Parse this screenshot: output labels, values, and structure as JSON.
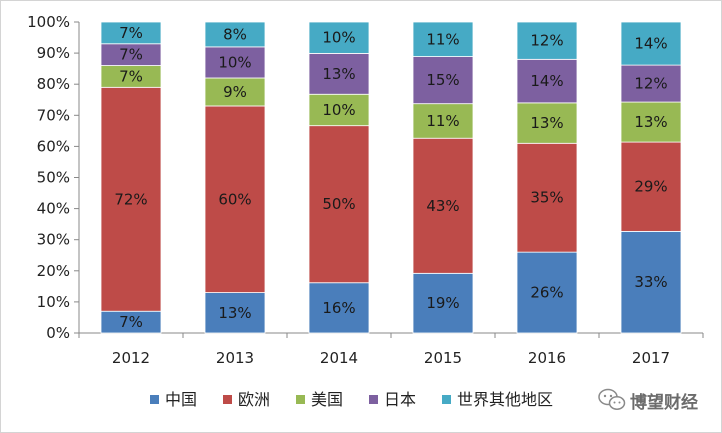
{
  "chart_data": {
    "type": "bar",
    "stacked": true,
    "normalized": true,
    "categories": [
      "2012",
      "2013",
      "2014",
      "2015",
      "2016",
      "2017"
    ],
    "yticks": [
      "0%",
      "10%",
      "20%",
      "30%",
      "40%",
      "50%",
      "60%",
      "70%",
      "80%",
      "90%",
      "100%"
    ],
    "ylim": [
      0,
      100
    ],
    "grid": false,
    "legend_position": "bottom",
    "series": [
      {
        "name": "中国",
        "color": "#4a7ebb",
        "values": [
          7,
          13,
          16,
          19,
          26,
          33
        ],
        "labels": [
          "7%",
          "13%",
          "16%",
          "19%",
          "26%",
          "33%"
        ]
      },
      {
        "name": "欧洲",
        "color": "#be4b48",
        "values": [
          72,
          60,
          50,
          43,
          35,
          29
        ],
        "labels": [
          "72%",
          "60%",
          "50%",
          "43%",
          "35%",
          "29%"
        ]
      },
      {
        "name": "美国",
        "color": "#98b954",
        "values": [
          7,
          9,
          10,
          11,
          13,
          13
        ],
        "labels": [
          "7%",
          "9%",
          "10%",
          "11%",
          "13%",
          "13%"
        ]
      },
      {
        "name": "日本",
        "color": "#7d60a0",
        "values": [
          7,
          10,
          13,
          15,
          14,
          12
        ],
        "labels": [
          "7%",
          "10%",
          "13%",
          "15%",
          "14%",
          "12%"
        ]
      },
      {
        "name": "世界其他地区",
        "color": "#46aac5",
        "values": [
          7,
          8,
          10,
          11,
          12,
          14
        ],
        "labels": [
          "7%",
          "8%",
          "10%",
          "11%",
          "12%",
          "14%"
        ]
      }
    ]
  },
  "watermark": {
    "text": "博望财经",
    "icon": "wechat-icon"
  }
}
